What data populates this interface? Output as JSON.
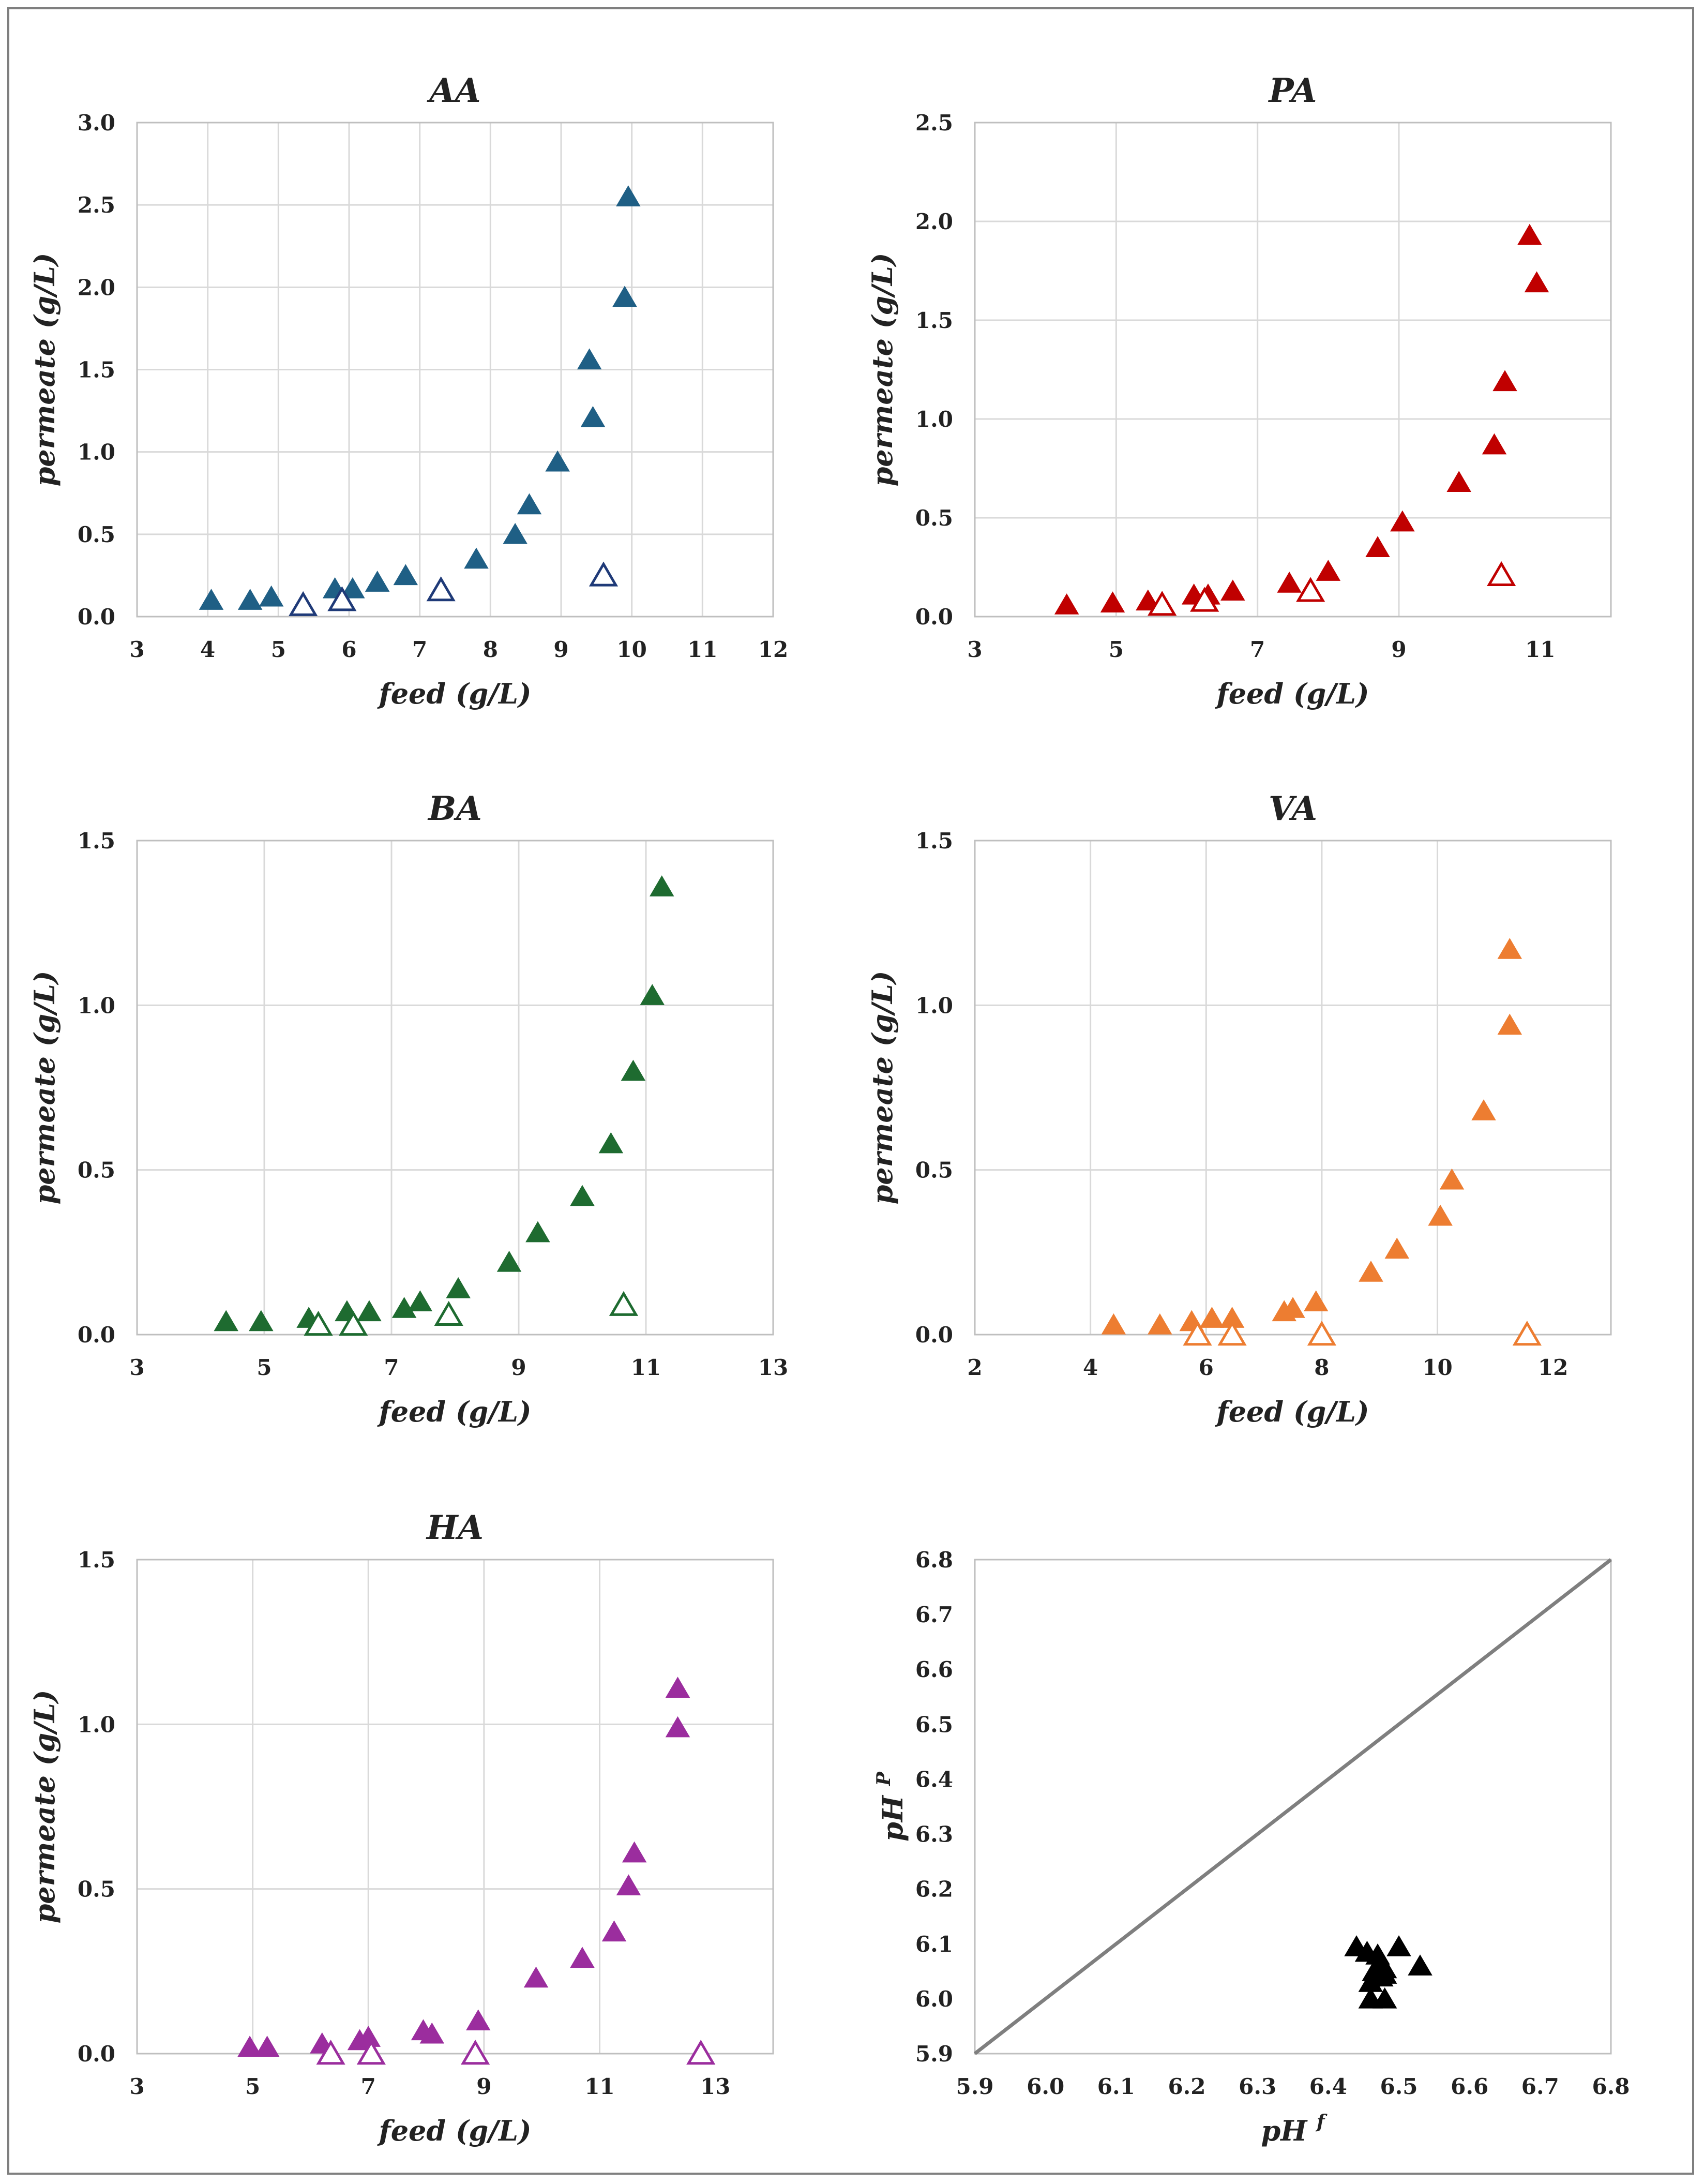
{
  "chart_data": [
    {
      "type": "scatter",
      "title": "AA",
      "xlabel": "feed (g/L)",
      "ylabel": "permeate (g/L)",
      "xlim": [
        3,
        12
      ],
      "ylim": [
        0,
        3.0
      ],
      "xticks": [
        3,
        4,
        5,
        6,
        7,
        8,
        9,
        10,
        11,
        12
      ],
      "xtick_labels": [
        "3",
        "4",
        "5",
        "6",
        "7",
        "8",
        "9",
        "10",
        "11",
        "12"
      ],
      "yticks": [
        0,
        0.5,
        1.0,
        1.5,
        2.0,
        2.5,
        3.0
      ],
      "ytick_labels": [
        "0.0",
        "0.5",
        "1.0",
        "1.5",
        "2.0",
        "2.5",
        "3.0"
      ],
      "color": "#1f5f85",
      "open_color": "#1f3a78",
      "series": [
        {
          "name": "filled",
          "marker": "filled-triangle",
          "x": [
            4.05,
            4.6,
            4.9,
            5.8,
            6.05,
            6.4,
            6.8,
            7.8,
            8.35,
            8.55,
            8.95,
            9.4,
            9.45,
            9.9,
            9.95
          ],
          "y": [
            0.1,
            0.1,
            0.12,
            0.17,
            0.17,
            0.21,
            0.25,
            0.35,
            0.5,
            0.68,
            0.94,
            1.56,
            1.21,
            1.94,
            2.55
          ]
        },
        {
          "name": "open",
          "marker": "open-triangle",
          "x": [
            5.35,
            5.9,
            7.3,
            9.6
          ],
          "y": [
            0.07,
            0.1,
            0.16,
            0.25
          ]
        }
      ]
    },
    {
      "type": "scatter",
      "title": "PA",
      "xlabel": "feed (g/L)",
      "ylabel": "permeate (g/L)",
      "xlim": [
        3,
        12
      ],
      "ylim": [
        0,
        2.5
      ],
      "xticks": [
        3,
        5,
        7,
        9,
        11
      ],
      "xtick_labels": [
        "3",
        "5",
        "7",
        "9",
        "11"
      ],
      "yticks": [
        0,
        0.5,
        1.0,
        1.5,
        2.0,
        2.5
      ],
      "ytick_labels": [
        "0.0",
        "0.5",
        "1.0",
        "1.5",
        "2.0",
        "2.5"
      ],
      "color": "#c00000",
      "open_color": "#c00000",
      "series": [
        {
          "name": "filled",
          "marker": "filled-triangle",
          "x": [
            4.3,
            4.95,
            5.45,
            6.1,
            6.3,
            6.65,
            7.45,
            8.0,
            8.7,
            9.05,
            9.85,
            10.35,
            10.5,
            10.85,
            10.95
          ],
          "y": [
            0.06,
            0.07,
            0.08,
            0.11,
            0.11,
            0.13,
            0.17,
            0.23,
            0.35,
            0.48,
            0.68,
            0.87,
            1.19,
            1.93,
            1.69
          ]
        },
        {
          "name": "open",
          "marker": "open-triangle",
          "x": [
            5.65,
            6.25,
            7.75,
            10.45
          ],
          "y": [
            0.06,
            0.08,
            0.13,
            0.21
          ]
        }
      ]
    },
    {
      "type": "scatter",
      "title": "BA",
      "xlabel": "feed (g/L)",
      "ylabel": "permeate  (g/L)",
      "xlim": [
        3,
        13
      ],
      "ylim": [
        0,
        1.5
      ],
      "xticks": [
        3,
        5,
        7,
        9,
        11,
        13
      ],
      "xtick_labels": [
        "3",
        "5",
        "7",
        "9",
        "11",
        "13"
      ],
      "yticks": [
        0,
        0.5,
        1.0,
        1.5
      ],
      "ytick_labels": [
        "0.0",
        "0.5",
        "1.0",
        "1.5"
      ],
      "color": "#1e6b30",
      "open_color": "#1e6b30",
      "series": [
        {
          "name": "filled",
          "marker": "filled-triangle",
          "x": [
            4.4,
            4.95,
            5.7,
            6.3,
            6.65,
            7.2,
            7.45,
            8.05,
            8.85,
            9.3,
            10.0,
            10.45,
            10.8,
            11.1,
            11.25
          ],
          "y": [
            0.04,
            0.04,
            0.05,
            0.07,
            0.07,
            0.08,
            0.1,
            0.14,
            0.22,
            0.31,
            0.42,
            0.58,
            0.8,
            1.03,
            1.36
          ]
        },
        {
          "name": "open",
          "marker": "open-triangle",
          "x": [
            5.85,
            6.4,
            7.9,
            10.65
          ],
          "y": [
            0.03,
            0.03,
            0.06,
            0.09
          ]
        }
      ]
    },
    {
      "type": "scatter",
      "title": "VA",
      "xlabel": "feed (g/L)",
      "ylabel": "permeate  (g/L)",
      "xlim": [
        2,
        13
      ],
      "ylim": [
        0,
        1.5
      ],
      "xticks": [
        2,
        4,
        6,
        8,
        10,
        12
      ],
      "xtick_labels": [
        "2",
        "4",
        "6",
        "8",
        "10",
        "12"
      ],
      "yticks": [
        0,
        0.5,
        1.0,
        1.5
      ],
      "ytick_labels": [
        "0.0",
        "0.5",
        "1.0",
        "1.5"
      ],
      "color": "#ed7d31",
      "open_color": "#ed7d31",
      "series": [
        {
          "name": "filled",
          "marker": "filled-triangle",
          "x": [
            4.4,
            5.2,
            5.75,
            6.1,
            6.45,
            7.35,
            7.5,
            7.9,
            8.85,
            9.3,
            10.05,
            10.25,
            10.8,
            11.25,
            11.25
          ],
          "y": [
            0.03,
            0.03,
            0.04,
            0.05,
            0.05,
            0.07,
            0.08,
            0.1,
            0.19,
            0.26,
            0.36,
            0.47,
            0.68,
            0.94,
            1.17
          ]
        },
        {
          "name": "open",
          "marker": "open-triangle",
          "x": [
            5.85,
            6.45,
            8.0,
            11.55
          ],
          "y": [
            0.0,
            0.0,
            0.0,
            0.0
          ]
        }
      ]
    },
    {
      "type": "scatter",
      "title": "HA",
      "xlabel": "feed (g/L)",
      "ylabel": "permeate (g/L)",
      "xlim": [
        3,
        14
      ],
      "ylim": [
        0,
        1.5
      ],
      "xticks": [
        3,
        5,
        7,
        9,
        11,
        13
      ],
      "xtick_labels": [
        "3",
        "5",
        "7",
        "9",
        "11",
        "13"
      ],
      "yticks": [
        0,
        0.5,
        1.0,
        1.5
      ],
      "ytick_labels": [
        "0.0",
        "0.5",
        "1.0",
        "1.5"
      ],
      "color": "#9b2d9e",
      "open_color": "#9b2d9e",
      "series": [
        {
          "name": "filled",
          "marker": "filled-triangle",
          "x": [
            4.95,
            5.25,
            6.2,
            6.85,
            7.0,
            7.95,
            8.1,
            8.9,
            9.9,
            10.7,
            11.25,
            11.5,
            11.6,
            12.35,
            12.35
          ],
          "y": [
            0.02,
            0.02,
            0.03,
            0.04,
            0.05,
            0.07,
            0.06,
            0.1,
            0.23,
            0.29,
            0.37,
            0.51,
            0.61,
            0.99,
            1.11
          ]
        },
        {
          "name": "open",
          "marker": "open-triangle",
          "x": [
            6.35,
            7.05,
            8.85,
            12.75
          ],
          "y": [
            0.0,
            0.0,
            0.0,
            0.0
          ]
        }
      ]
    },
    {
      "type": "scatter",
      "title": "",
      "xlabel": "pH f",
      "xlabel_main": "pH",
      "xlabel_sup": "f",
      "ylabel": "pH P",
      "ylabel_main": "pH",
      "ylabel_sup": "P",
      "xlim": [
        5.9,
        6.8
      ],
      "ylim": [
        5.9,
        6.8
      ],
      "xticks": [
        5.9,
        6.0,
        6.1,
        6.2,
        6.3,
        6.4,
        6.5,
        6.6,
        6.7,
        6.8
      ],
      "xtick_labels": [
        "5.9",
        "6.0",
        "6.1",
        "6.2",
        "6.3",
        "6.4",
        "6.5",
        "6.6",
        "6.7",
        "6.8"
      ],
      "yticks": [
        5.9,
        6.0,
        6.1,
        6.2,
        6.3,
        6.4,
        6.5,
        6.6,
        6.7,
        6.8
      ],
      "ytick_labels": [
        "5.9",
        "6.0",
        "6.1",
        "6.2",
        "6.3",
        "6.4",
        "6.5",
        "6.6",
        "6.7",
        "6.8"
      ],
      "grid": false,
      "color": "#000000",
      "line_color": "#7f7f7f",
      "reference_line": {
        "x": [
          5.9,
          6.8
        ],
        "y": [
          5.9,
          6.8
        ]
      },
      "series": [
        {
          "name": "filled",
          "marker": "filled-triangle",
          "x": [
            6.44,
            6.455,
            6.46,
            6.465,
            6.47,
            6.47,
            6.475,
            6.48,
            6.48,
            6.48,
            6.5,
            6.53,
            6.46,
            6.475
          ],
          "y": [
            6.095,
            6.085,
            6.03,
            6.05,
            6.08,
            6.06,
            6.04,
            6.055,
            6.045,
            6.0,
            6.095,
            6.06,
            6.0,
            6.065
          ]
        }
      ]
    }
  ]
}
